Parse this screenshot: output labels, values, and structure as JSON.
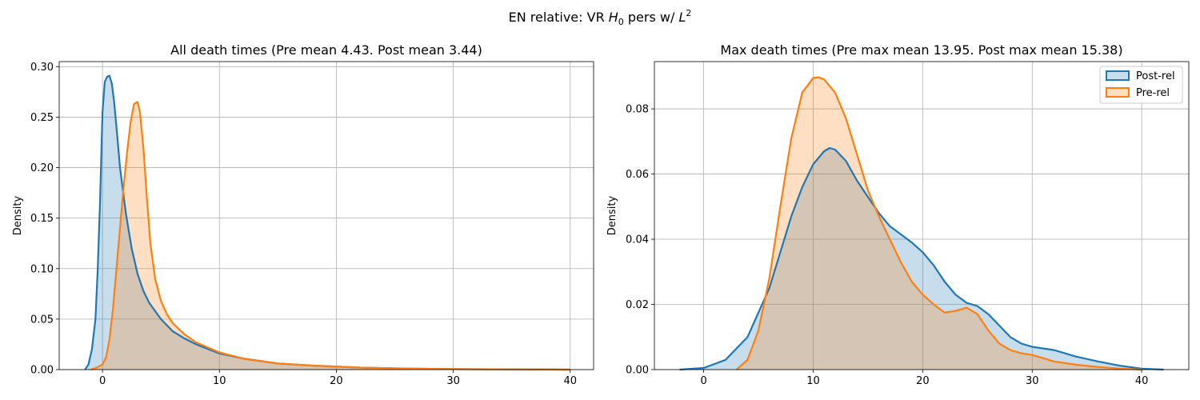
{
  "figure": {
    "suptitle_parts": {
      "prefix": "EN relative: VR ",
      "h": "H",
      "h_sub": "0",
      "mid": " pers w/ ",
      "l": "L",
      "l_sup": "2"
    }
  },
  "colors": {
    "post": "#1f77b4",
    "pre": "#ff7f0e",
    "grid": "#b0b0b0"
  },
  "chart_data": [
    {
      "type": "area",
      "title": "All death times (Pre mean 4.43. Post mean 3.44)",
      "xlabel": "",
      "ylabel": "Density",
      "xlim": [
        -3.7,
        42
      ],
      "ylim": [
        0,
        0.305
      ],
      "xticks": [
        0,
        10,
        20,
        30,
        40
      ],
      "yticks": [
        0.0,
        0.05,
        0.1,
        0.15,
        0.2,
        0.25,
        0.3
      ],
      "ytick_decimals": 2,
      "grid": true,
      "series": [
        {
          "key": "post",
          "x": [
            -1.5,
            -1.2,
            -0.9,
            -0.6,
            -0.4,
            -0.2,
            0.0,
            0.2,
            0.4,
            0.6,
            0.8,
            1.0,
            1.2,
            1.5,
            2.0,
            2.5,
            3.0,
            3.5,
            4.0,
            5.0,
            6.0,
            7.0,
            8.0,
            10.0,
            12.0,
            15.0,
            18.0,
            22.0,
            26.0,
            30.0,
            35.0,
            40.0
          ],
          "y": [
            0.0,
            0.005,
            0.02,
            0.05,
            0.1,
            0.17,
            0.255,
            0.285,
            0.29,
            0.291,
            0.283,
            0.265,
            0.24,
            0.2,
            0.155,
            0.12,
            0.095,
            0.078,
            0.066,
            0.05,
            0.038,
            0.031,
            0.025,
            0.016,
            0.011,
            0.006,
            0.004,
            0.002,
            0.001,
            0.0005,
            0.0002,
            0.0
          ]
        },
        {
          "key": "pre",
          "x": [
            -1.0,
            -0.5,
            0.0,
            0.3,
            0.6,
            0.9,
            1.2,
            1.5,
            1.8,
            2.1,
            2.4,
            2.7,
            3.0,
            3.2,
            3.5,
            3.8,
            4.1,
            4.5,
            5.0,
            5.5,
            6.0,
            7.0,
            8.0,
            10.0,
            12.0,
            15.0,
            18.0,
            22.0,
            26.0,
            30.0,
            35.0,
            40.0
          ],
          "y": [
            0.0,
            0.002,
            0.005,
            0.012,
            0.03,
            0.06,
            0.1,
            0.14,
            0.18,
            0.215,
            0.245,
            0.263,
            0.265,
            0.255,
            0.22,
            0.17,
            0.125,
            0.09,
            0.068,
            0.055,
            0.046,
            0.035,
            0.027,
            0.017,
            0.011,
            0.006,
            0.004,
            0.002,
            0.001,
            0.0005,
            0.0002,
            0.0
          ]
        }
      ]
    },
    {
      "type": "area",
      "title": "Max death times (Pre max mean 13.95. Post max mean 15.38)",
      "xlabel": "",
      "ylabel": "Density",
      "xlim": [
        -4.5,
        44.3
      ],
      "ylim": [
        0,
        0.0945
      ],
      "xticks": [
        0,
        10,
        20,
        30,
        40
      ],
      "yticks": [
        0.0,
        0.02,
        0.04,
        0.06,
        0.08
      ],
      "ytick_decimals": 2,
      "grid": true,
      "legend_position": "top-right",
      "series": [
        {
          "key": "post",
          "name": "Post-rel",
          "x": [
            -2.2,
            0.0,
            2.0,
            4.0,
            6.0,
            7.0,
            8.0,
            9.0,
            10.0,
            11.0,
            11.5,
            12.0,
            13.0,
            14.0,
            15.0,
            16.0,
            17.0,
            18.0,
            19.0,
            20.0,
            21.0,
            22.0,
            23.0,
            24.0,
            25.0,
            26.0,
            27.0,
            28.0,
            29.0,
            30.0,
            32.0,
            34.0,
            36.0,
            38.0,
            40.0,
            42.0
          ],
          "y": [
            0.0,
            0.0005,
            0.003,
            0.01,
            0.025,
            0.036,
            0.047,
            0.056,
            0.063,
            0.067,
            0.068,
            0.0675,
            0.064,
            0.058,
            0.053,
            0.048,
            0.044,
            0.0415,
            0.039,
            0.036,
            0.032,
            0.027,
            0.023,
            0.0205,
            0.0195,
            0.017,
            0.0135,
            0.01,
            0.008,
            0.007,
            0.006,
            0.004,
            0.0025,
            0.0012,
            0.0003,
            0.0
          ]
        },
        {
          "key": "pre",
          "name": "Pre-rel",
          "x": [
            3.0,
            4.0,
            5.0,
            6.0,
            7.0,
            8.0,
            9.0,
            10.0,
            10.5,
            11.0,
            12.0,
            13.0,
            14.0,
            15.0,
            16.0,
            17.0,
            18.0,
            19.0,
            20.0,
            21.0,
            22.0,
            23.0,
            24.0,
            25.0,
            26.0,
            27.0,
            28.0,
            29.0,
            30.0,
            31.0,
            32.0,
            34.0,
            36.0,
            38.0,
            40.0
          ],
          "y": [
            0.0,
            0.003,
            0.012,
            0.028,
            0.05,
            0.071,
            0.085,
            0.0895,
            0.0897,
            0.089,
            0.085,
            0.077,
            0.066,
            0.055,
            0.047,
            0.04,
            0.033,
            0.027,
            0.023,
            0.02,
            0.0175,
            0.018,
            0.019,
            0.017,
            0.012,
            0.008,
            0.006,
            0.005,
            0.0045,
            0.0035,
            0.0025,
            0.0015,
            0.0008,
            0.0003,
            0.0
          ]
        }
      ]
    }
  ]
}
